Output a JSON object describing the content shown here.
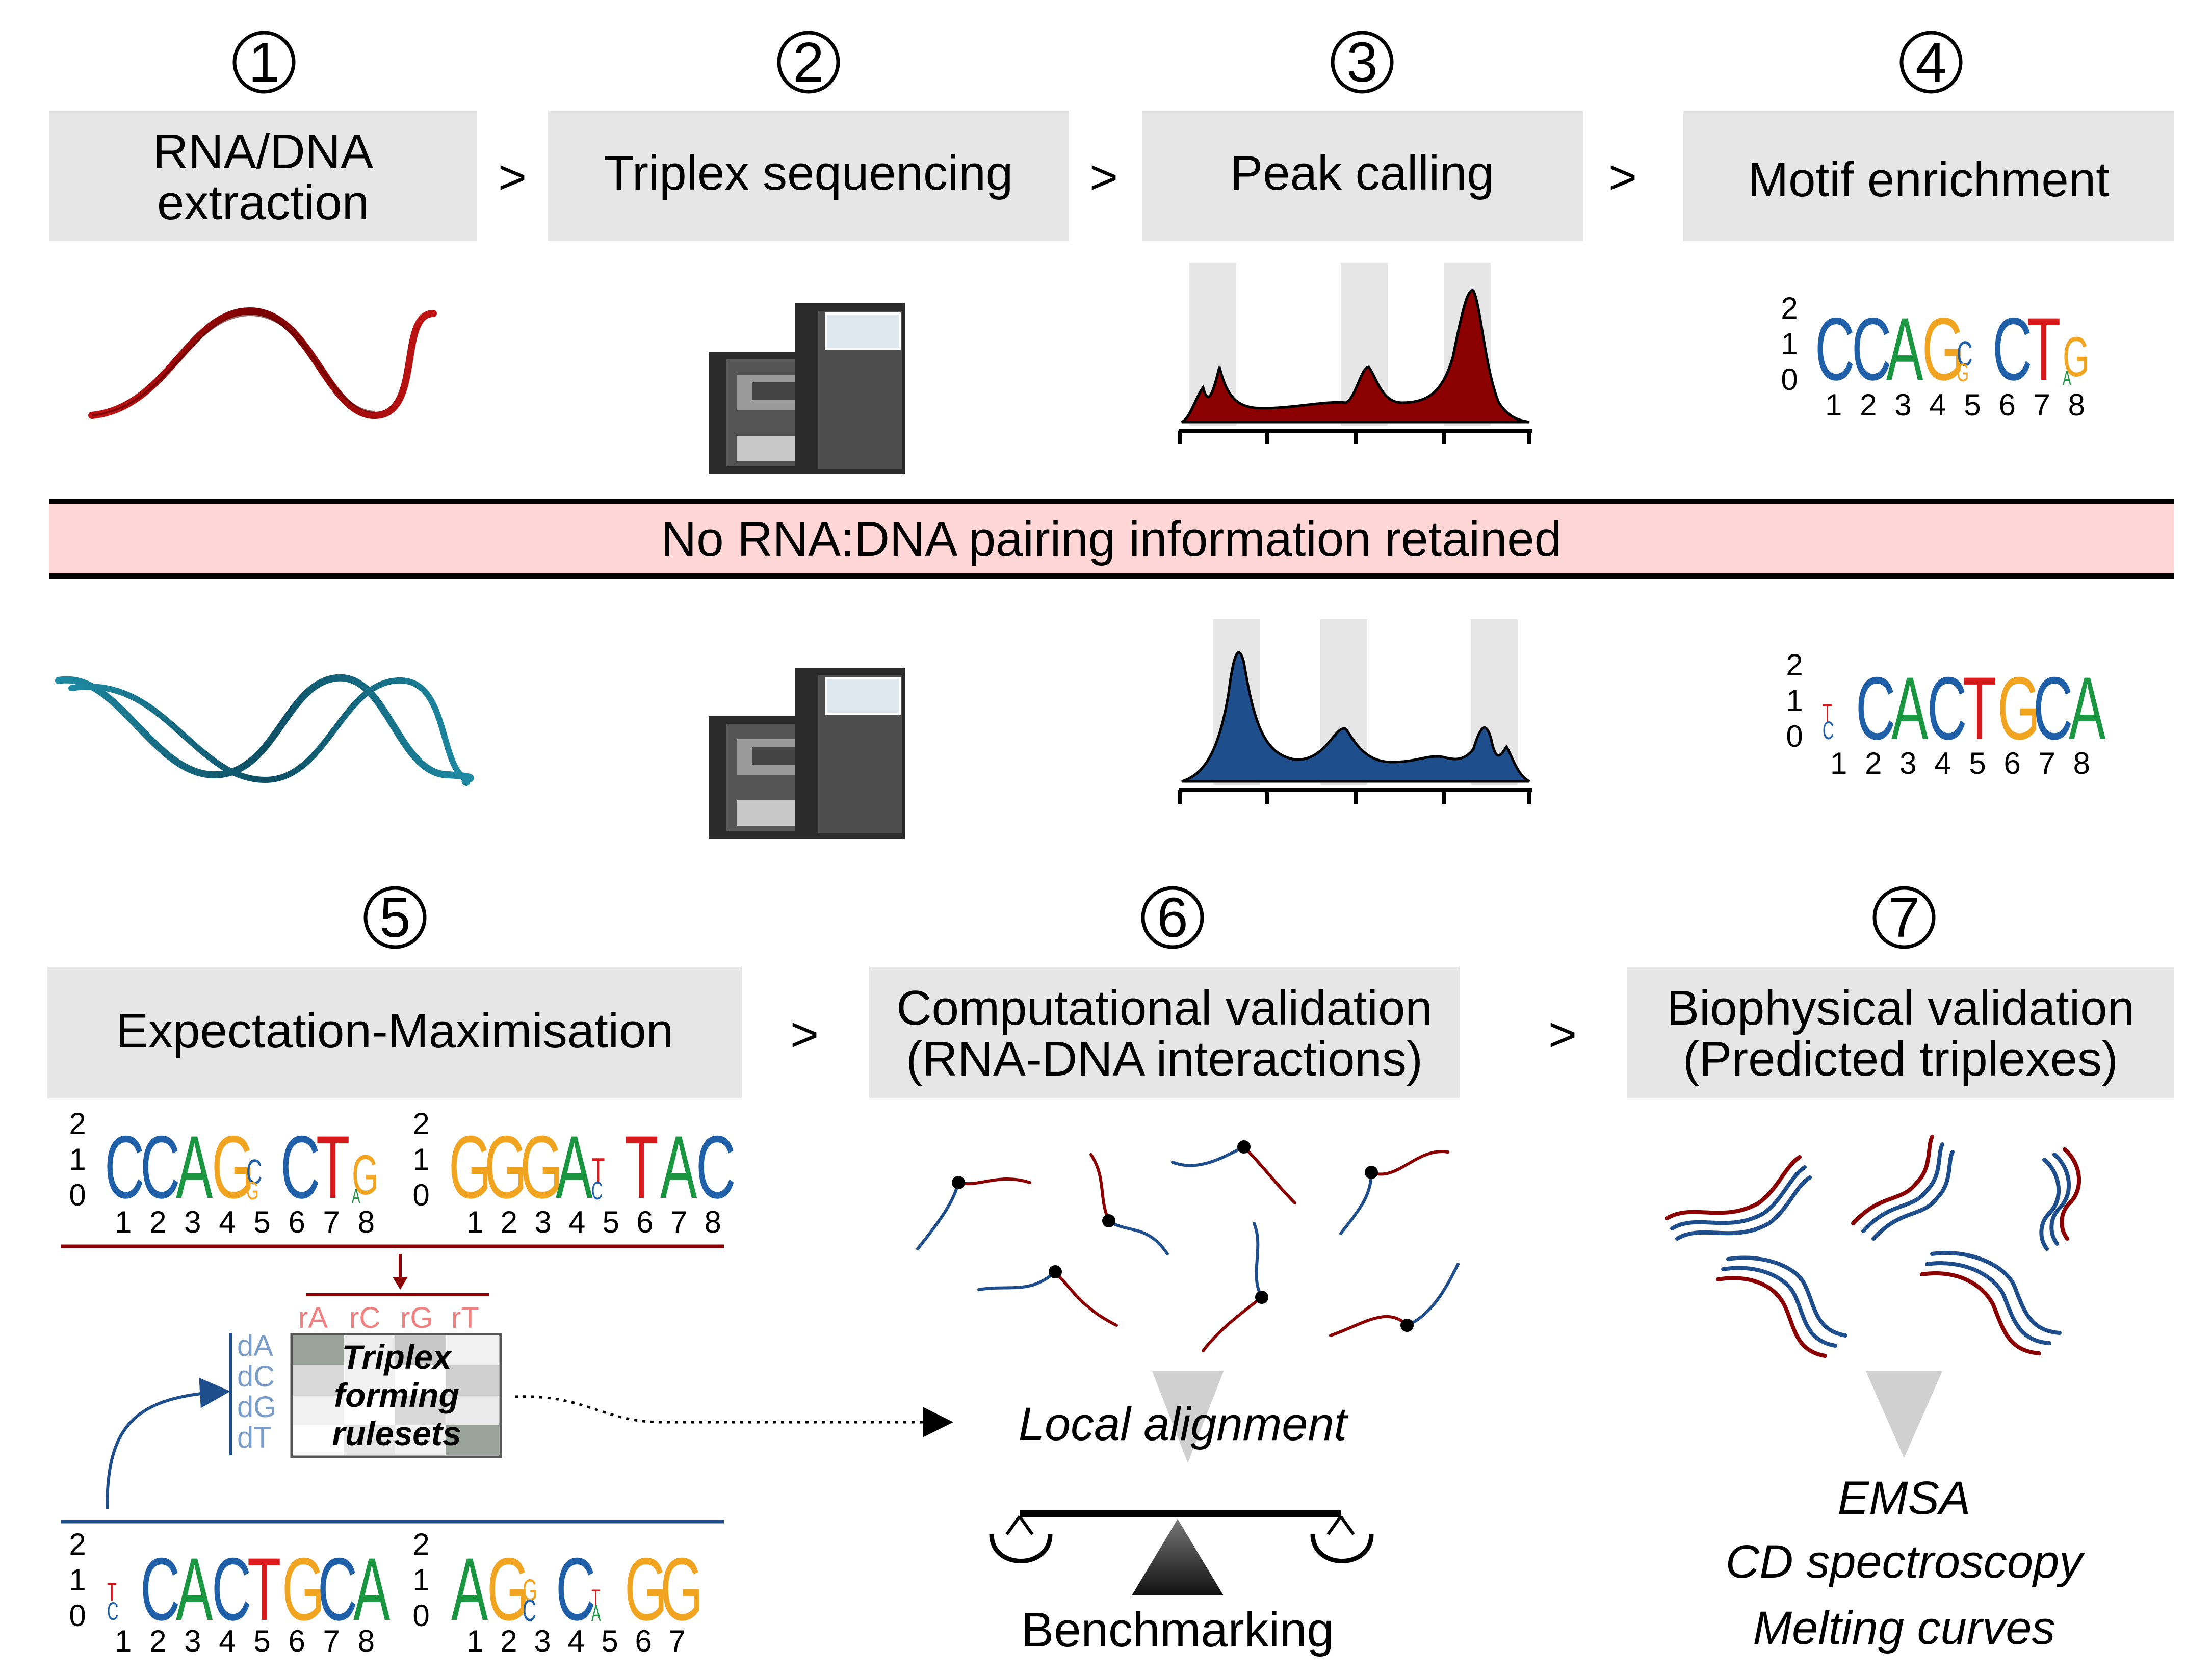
{
  "steps": {
    "s1": {
      "num": "1",
      "line1": "RNA/DNA",
      "line2": "extraction"
    },
    "s2": {
      "num": "2",
      "label": "Triplex sequencing"
    },
    "s3": {
      "num": "3",
      "label": "Peak calling"
    },
    "s4": {
      "num": "4",
      "label": "Motif enrichment"
    },
    "s5": {
      "num": "5",
      "label": "Expectation-Maximisation"
    },
    "s6": {
      "num": "6",
      "line1": "Computational validation",
      "line2": "(RNA-DNA interactions)"
    },
    "s7": {
      "num": "7",
      "line1": "Biophysical validation",
      "line2": "(Predicted triplexes)"
    }
  },
  "arrows": {
    "symbol": ">"
  },
  "banner": {
    "text": "No RNA:DNA pairing information retained"
  },
  "logo_axis": {
    "y2": "2",
    "y1": "1",
    "y0": "0"
  },
  "logos": {
    "top_motif": {
      "letters": [
        "C",
        "C",
        "A",
        "G",
        "C",
        "C",
        "T",
        "G"
      ],
      "positions": "1 2 3 4 5 6 7 8"
    },
    "bottom_motif": {
      "letters": [
        "T",
        "C",
        "A",
        "C",
        "T",
        "G",
        "C",
        "A"
      ],
      "positions": "1 2 3 4 5 6 7 8"
    },
    "em_a": {
      "letters": [
        "C",
        "C",
        "A",
        "G",
        "C",
        "C",
        "T",
        "G"
      ],
      "positions": "1 2 3 4 5 6 7 8"
    },
    "em_b": {
      "letters": [
        "G",
        "G",
        "G",
        "A",
        "T",
        "T",
        "A",
        "C"
      ],
      "positions": "1 2 3 4 5 6 7 8"
    },
    "em_c": {
      "letters": [
        "T",
        "C",
        "A",
        "C",
        "T",
        "G",
        "C",
        "A"
      ],
      "positions": "1 2 3 4 5 6 7 8"
    },
    "em_d": {
      "letters": [
        "A",
        "G",
        "C",
        "C",
        "T",
        "G",
        "G"
      ],
      "positions": "1 2 3 4 5 6 7"
    }
  },
  "matrix": {
    "cols": [
      "rA",
      "rC",
      "rG",
      "rT"
    ],
    "rows": [
      "dA",
      "dC",
      "dG",
      "dT"
    ],
    "title_line1": "Triplex",
    "title_line2": "forming",
    "title_line3": "rulesets"
  },
  "validation": {
    "local_alignment": "Local alignment",
    "benchmarking": "Benchmarking",
    "emsa": "EMSA",
    "cd": "CD spectroscopy",
    "melting": "Melting curves"
  },
  "colors": {
    "rna_red": "#8b0000",
    "dna_blue": "#1f4e8c",
    "teal": "#1a6f8a",
    "banner_pink": "#ffd6d6",
    "box_gray": "#e6e6e6",
    "A": "#1a9641",
    "C": "#1f5fa8",
    "G": "#f0a420",
    "T": "#d7191c"
  }
}
